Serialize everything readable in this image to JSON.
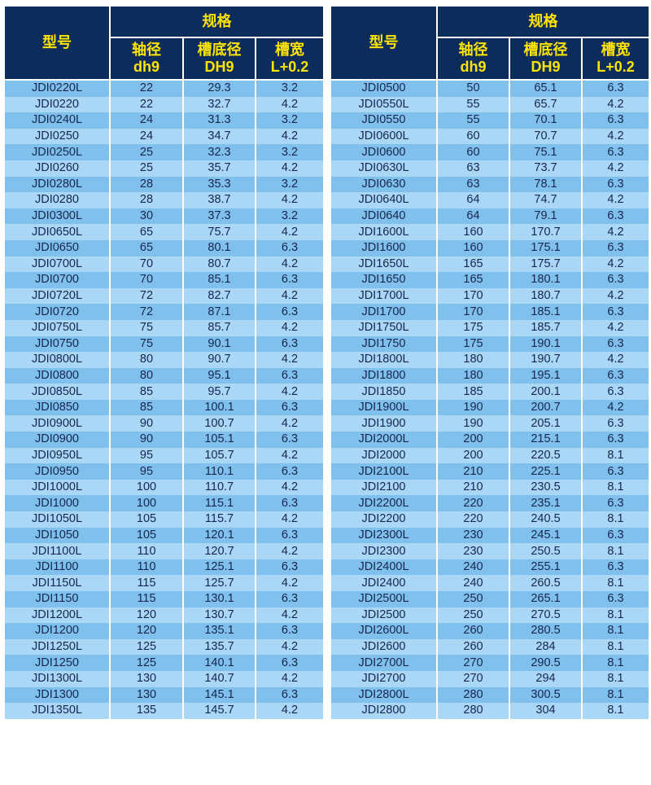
{
  "header": {
    "model": "型号",
    "spec": "规格",
    "col1_line1": "轴径",
    "col1_line2": "dh9",
    "col2_line1": "槽底径",
    "col2_line2": "DH9",
    "col3_line1": "槽宽",
    "col3_line2": "L+0.2"
  },
  "colors": {
    "header_bg": "#0c2d5c",
    "header_text": "#ffe400",
    "row_dark": "#80c0ec",
    "row_light": "#a9d7f5",
    "cell_text": "#16264f"
  },
  "left_rows": [
    [
      "JDI0220L",
      "22",
      "29.3",
      "3.2"
    ],
    [
      "JDI0220",
      "22",
      "32.7",
      "4.2"
    ],
    [
      "JDI0240L",
      "24",
      "31.3",
      "3.2"
    ],
    [
      "JDI0250",
      "24",
      "34.7",
      "4.2"
    ],
    [
      "JDI0250L",
      "25",
      "32.3",
      "3.2"
    ],
    [
      "JDI0260",
      "25",
      "35.7",
      "4.2"
    ],
    [
      "JDI0280L",
      "28",
      "35.3",
      "3.2"
    ],
    [
      "JDI0280",
      "28",
      "38.7",
      "4.2"
    ],
    [
      "JDI0300L",
      "30",
      "37.3",
      "3.2"
    ],
    [
      "JDI0650L",
      "65",
      "75.7",
      "4.2"
    ],
    [
      "JDI0650",
      "65",
      "80.1",
      "6.3"
    ],
    [
      "JDI0700L",
      "70",
      "80.7",
      "4.2"
    ],
    [
      "JDI0700",
      "70",
      "85.1",
      "6.3"
    ],
    [
      "JDI0720L",
      "72",
      "82.7",
      "4.2"
    ],
    [
      "JDI0720",
      "72",
      "87.1",
      "6.3"
    ],
    [
      "JDI0750L",
      "75",
      "85.7",
      "4.2"
    ],
    [
      "JDI0750",
      "75",
      "90.1",
      "6.3"
    ],
    [
      "JDI0800L",
      "80",
      "90.7",
      "4.2"
    ],
    [
      "JDI0800",
      "80",
      "95.1",
      "6.3"
    ],
    [
      "JDI0850L",
      "85",
      "95.7",
      "4.2"
    ],
    [
      "JDI0850",
      "85",
      "100.1",
      "6.3"
    ],
    [
      "JDI0900L",
      "90",
      "100.7",
      "4.2"
    ],
    [
      "JDI0900",
      "90",
      "105.1",
      "6.3"
    ],
    [
      "JDI0950L",
      "95",
      "105.7",
      "4.2"
    ],
    [
      "JDI0950",
      "95",
      "110.1",
      "6.3"
    ],
    [
      "JDI1000L",
      "100",
      "110.7",
      "4.2"
    ],
    [
      "JDI1000",
      "100",
      "115.1",
      "6.3"
    ],
    [
      "JDI1050L",
      "105",
      "115.7",
      "4.2"
    ],
    [
      "JDI1050",
      "105",
      "120.1",
      "6.3"
    ],
    [
      "JDI1100L",
      "110",
      "120.7",
      "4.2"
    ],
    [
      "JDI1100",
      "110",
      "125.1",
      "6.3"
    ],
    [
      "JDI1150L",
      "115",
      "125.7",
      "4.2"
    ],
    [
      "JDI1150",
      "115",
      "130.1",
      "6.3"
    ],
    [
      "JDI1200L",
      "120",
      "130.7",
      "4.2"
    ],
    [
      "JDI1200",
      "120",
      "135.1",
      "6.3"
    ],
    [
      "JDI1250L",
      "125",
      "135.7",
      "4.2"
    ],
    [
      "JDI1250",
      "125",
      "140.1",
      "6.3"
    ],
    [
      "JDI1300L",
      "130",
      "140.7",
      "4.2"
    ],
    [
      "JDI1300",
      "130",
      "145.1",
      "6.3"
    ],
    [
      "JDI1350L",
      "135",
      "145.7",
      "4.2"
    ]
  ],
  "right_rows": [
    [
      "JDI0500",
      "50",
      "65.1",
      "6.3"
    ],
    [
      "JDI0550L",
      "55",
      "65.7",
      "4.2"
    ],
    [
      "JDI0550",
      "55",
      "70.1",
      "6.3"
    ],
    [
      "JDI0600L",
      "60",
      "70.7",
      "4.2"
    ],
    [
      "JDI0600",
      "60",
      "75.1",
      "6.3"
    ],
    [
      "JDI0630L",
      "63",
      "73.7",
      "4.2"
    ],
    [
      "JDI0630",
      "63",
      "78.1",
      "6.3"
    ],
    [
      "JDI0640L",
      "64",
      "74.7",
      "4.2"
    ],
    [
      "JDI0640",
      "64",
      "79.1",
      "6.3"
    ],
    [
      "JDI1600L",
      "160",
      "170.7",
      "4.2"
    ],
    [
      "JDI1600",
      "160",
      "175.1",
      "6.3"
    ],
    [
      "JDI1650L",
      "165",
      "175.7",
      "4.2"
    ],
    [
      "JDI1650",
      "165",
      "180.1",
      "6.3"
    ],
    [
      "JDI1700L",
      "170",
      "180.7",
      "4.2"
    ],
    [
      "JDI1700",
      "170",
      "185.1",
      "6.3"
    ],
    [
      "JDI1750L",
      "175",
      "185.7",
      "4.2"
    ],
    [
      "JDI1750",
      "175",
      "190.1",
      "6.3"
    ],
    [
      "JDI1800L",
      "180",
      "190.7",
      "4.2"
    ],
    [
      "JDI1800",
      "180",
      "195.1",
      "6.3"
    ],
    [
      "JDI1850",
      "185",
      "200.1",
      "6.3"
    ],
    [
      "JDI1900L",
      "190",
      "200.7",
      "4.2"
    ],
    [
      "JDI1900",
      "190",
      "205.1",
      "6.3"
    ],
    [
      "JDI2000L",
      "200",
      "215.1",
      "6.3"
    ],
    [
      "JDI2000",
      "200",
      "220.5",
      "8.1"
    ],
    [
      "JDI2100L",
      "210",
      "225.1",
      "6.3"
    ],
    [
      "JDI2100",
      "210",
      "230.5",
      "8.1"
    ],
    [
      "JDI2200L",
      "220",
      "235.1",
      "6.3"
    ],
    [
      "JDI2200",
      "220",
      "240.5",
      "8.1"
    ],
    [
      "JDI2300L",
      "230",
      "245.1",
      "6.3"
    ],
    [
      "JDI2300",
      "230",
      "250.5",
      "8.1"
    ],
    [
      "JDI2400L",
      "240",
      "255.1",
      "6.3"
    ],
    [
      "JDI2400",
      "240",
      "260.5",
      "8.1"
    ],
    [
      "JDI2500L",
      "250",
      "265.1",
      "6.3"
    ],
    [
      "JDI2500",
      "250",
      "270.5",
      "8.1"
    ],
    [
      "JDI2600L",
      "260",
      "280.5",
      "8.1"
    ],
    [
      "JDI2600",
      "260",
      "284",
      "8.1"
    ],
    [
      "JDI2700L",
      "270",
      "290.5",
      "8.1"
    ],
    [
      "JDI2700",
      "270",
      "294",
      "8.1"
    ],
    [
      "JDI2800L",
      "280",
      "300.5",
      "8.1"
    ],
    [
      "JDI2800",
      "280",
      "304",
      "8.1"
    ]
  ]
}
